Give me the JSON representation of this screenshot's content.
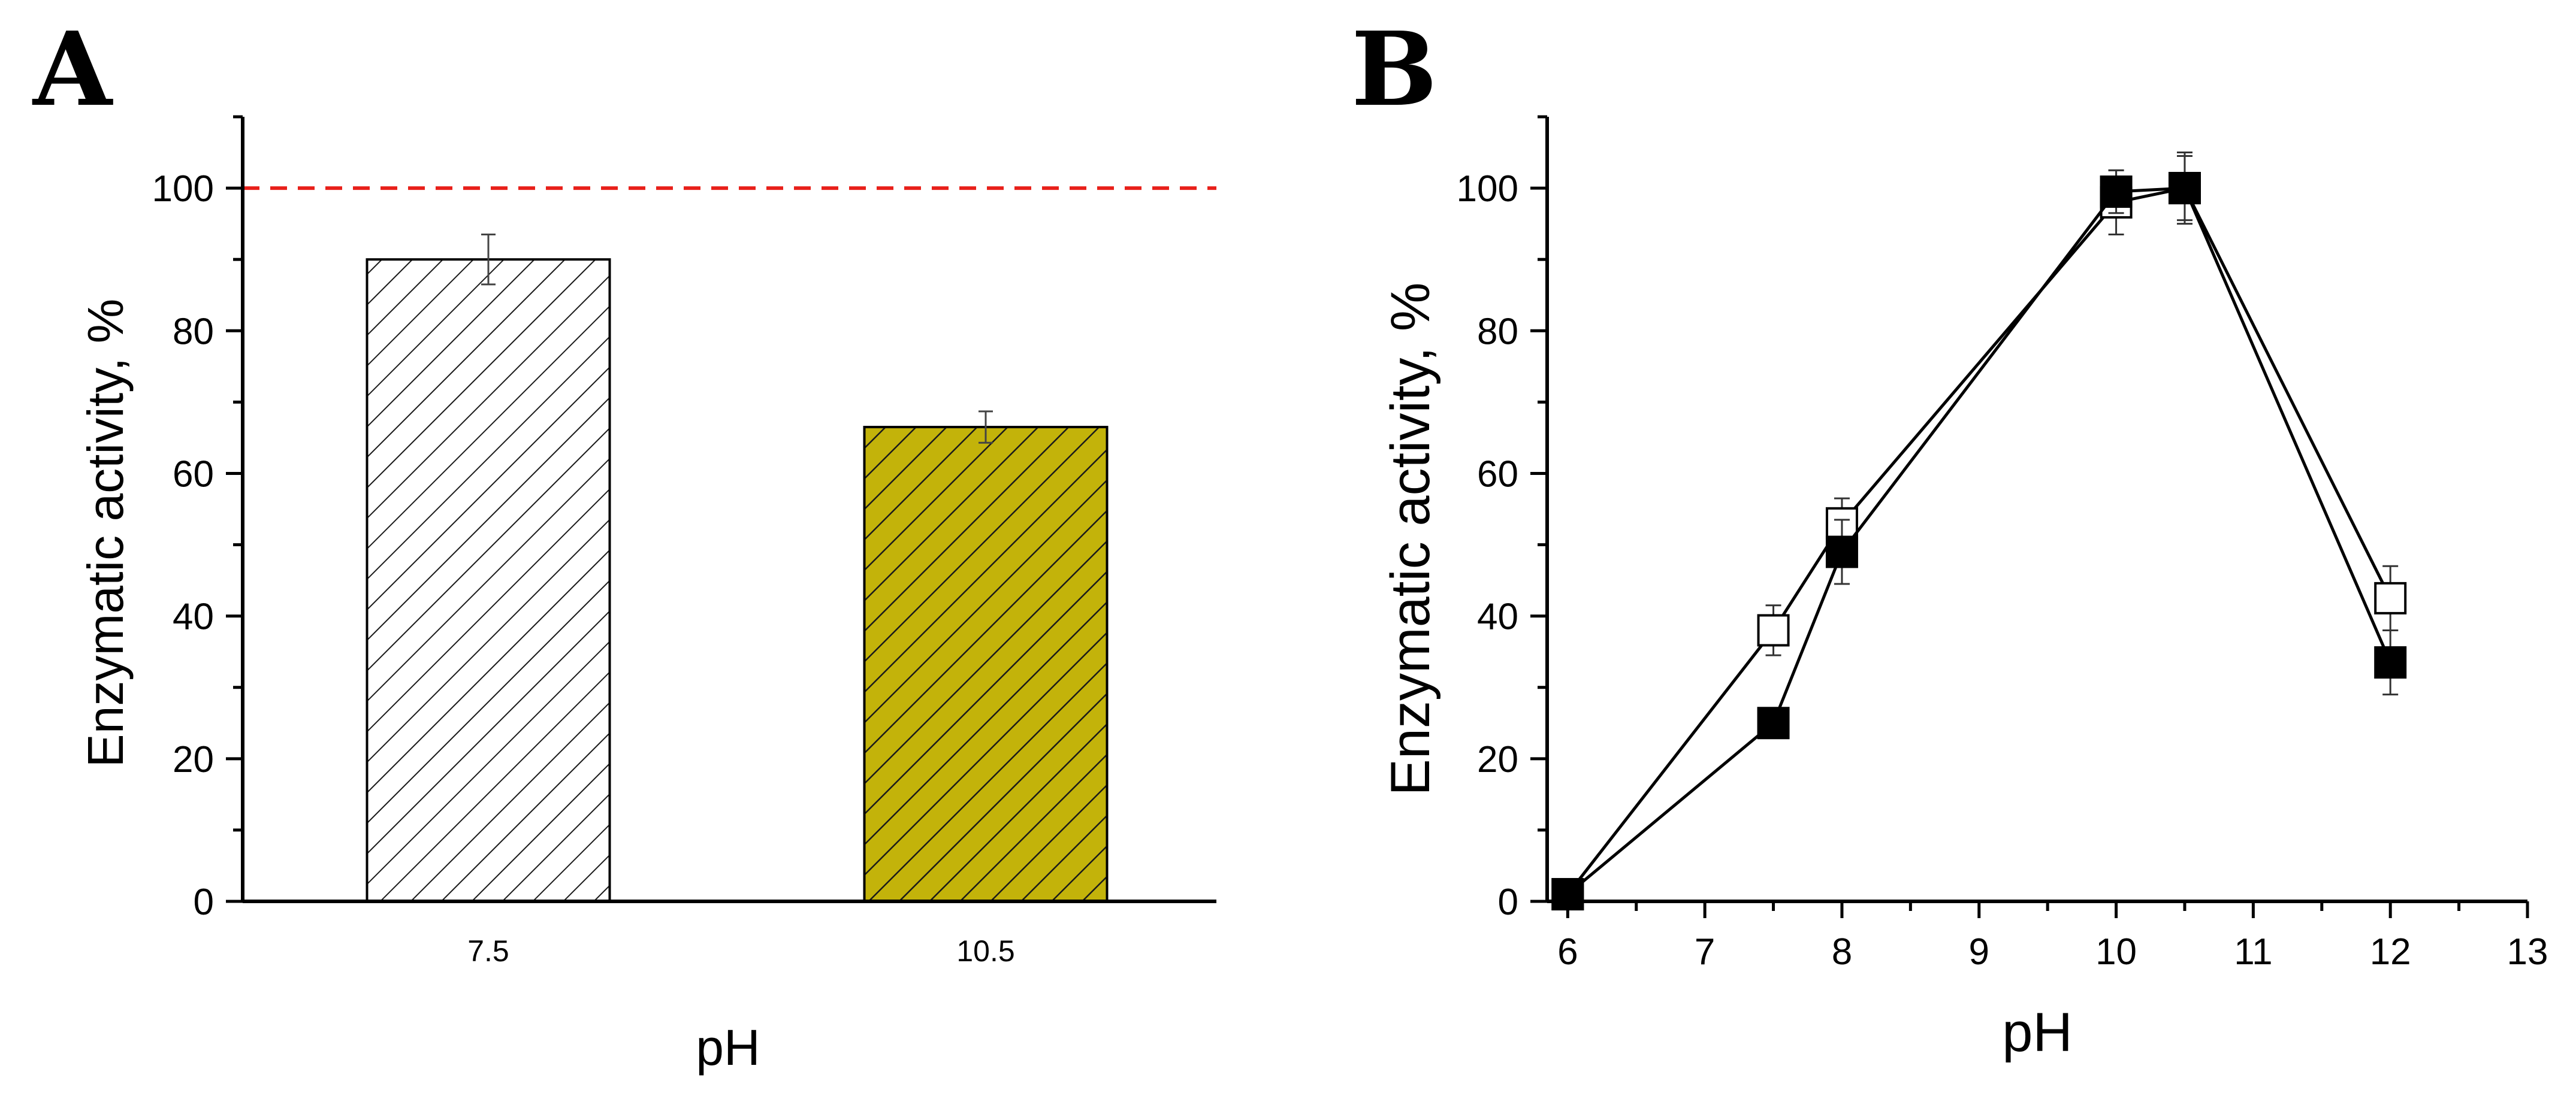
{
  "panel_labels": {
    "a": "A",
    "b": "B"
  },
  "colors": {
    "axis": "#000000",
    "reference_line": "#e8201a",
    "bar_1_fill": "#ffffff",
    "bar_2_fill": "#c3b30a",
    "hatch": "#1a1a1a",
    "series_open": "#ffffff",
    "series_filled": "#000000"
  },
  "chart_data": [
    {
      "type": "bar",
      "panel": "A",
      "title": "",
      "xlabel": "pH",
      "ylabel": "Enzymatic activity, %",
      "categories": [
        "7.5",
        "10.5"
      ],
      "values": [
        90,
        66.5
      ],
      "errors": [
        3.5,
        2.2
      ],
      "ylim": [
        0,
        110
      ],
      "yticks": [
        0,
        20,
        40,
        60,
        80,
        100
      ],
      "reference_line": {
        "y": 100,
        "style": "dashed",
        "color": "#e8201a"
      },
      "bar_patterns": [
        "diagonal-hatch on white",
        "diagonal-hatch on olive"
      ],
      "grid": false
    },
    {
      "type": "line",
      "panel": "B",
      "title": "",
      "xlabel": "pH",
      "ylabel": "Enzymatic activity, %",
      "xlim": [
        5.85,
        13
      ],
      "ylim": [
        0,
        110
      ],
      "xticks": [
        6,
        7,
        8,
        9,
        10,
        11,
        12,
        13
      ],
      "yticks": [
        0,
        20,
        40,
        60,
        80,
        100
      ],
      "grid": false,
      "series": [
        {
          "marker": "open-square",
          "x": [
            6,
            7.5,
            8,
            10,
            10.5,
            12
          ],
          "y": [
            1,
            38,
            53,
            98,
            100,
            42.5
          ],
          "errors": [
            0,
            3.5,
            3.5,
            4.5,
            4.5,
            4.5
          ]
        },
        {
          "marker": "filled-square",
          "x": [
            6,
            7.5,
            8,
            10,
            10.5,
            12
          ],
          "y": [
            1,
            25,
            49,
            99.5,
            100,
            33.5
          ],
          "errors": [
            0,
            0,
            4.5,
            3,
            5,
            4.5
          ]
        }
      ]
    }
  ]
}
